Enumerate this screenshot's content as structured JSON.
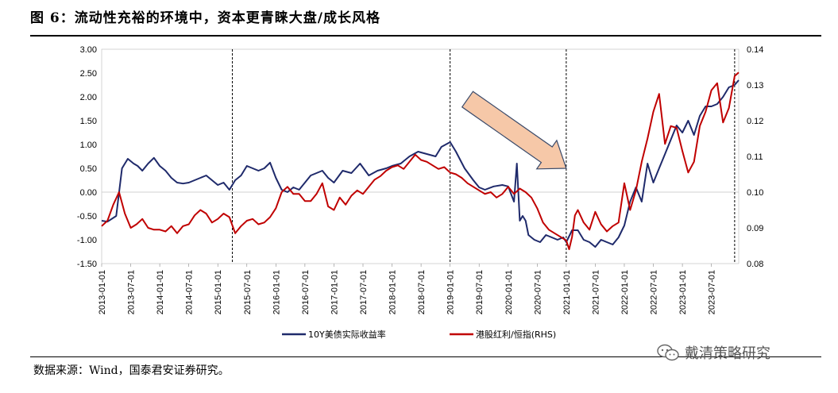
{
  "figure": {
    "title": "图 6：流动性充裕的环境中，资本更青睐大盘/成长风格",
    "source": "数据来源：Wind，国泰君安证券研究。",
    "watermark": "戴清策略研究",
    "watermark_icon": "wechat-icon"
  },
  "colors": {
    "series1": "#1f2a6b",
    "series2": "#c00000",
    "arrow_fill": "#f6c8a8",
    "arrow_stroke": "#3a4a6a"
  },
  "chart_data": {
    "type": "line",
    "title": "",
    "x_tick_labels": [
      "2013-01-01",
      "2013-07-01",
      "2014-01-01",
      "2014-07-01",
      "2015-01-01",
      "2015-07-01",
      "2016-01-01",
      "2016-07-01",
      "2017-01-01",
      "2017-07-01",
      "2018-01-01",
      "2018-07-01",
      "2019-01-01",
      "2019-07-01",
      "2020-01-01",
      "2020-07-01",
      "2021-01-01",
      "2021-07-01",
      "2022-01-01",
      "2022-07-01",
      "2023-01-01",
      "2023-07-01"
    ],
    "x_range": [
      2013.0,
      2023.97
    ],
    "y_left": {
      "range": [
        -1.5,
        3.0
      ],
      "ticks": [
        "-1.50",
        "-1.00",
        "-0.50",
        "0.00",
        "0.50",
        "1.00",
        "1.50",
        "2.00",
        "2.50",
        "3.00"
      ]
    },
    "y_right": {
      "range": [
        0.08,
        0.14
      ],
      "ticks": [
        "0.08",
        "0.09",
        "0.10",
        "0.11",
        "0.12",
        "0.13",
        "0.14"
      ]
    },
    "vertical_dashed_lines": [
      2015.25,
      2019.0,
      2021.0,
      2023.9
    ],
    "annotation_arrow": {
      "from": [
        2019.3,
        1.95
      ],
      "to": [
        2021.0,
        0.5
      ]
    },
    "series": [
      {
        "name": "10Y美债实际收益率",
        "axis": "left",
        "x": [
          2013.0,
          2013.1,
          2013.25,
          2013.35,
          2013.45,
          2013.55,
          2013.62,
          2013.7,
          2013.8,
          2013.9,
          2014.0,
          2014.1,
          2014.2,
          2014.3,
          2014.4,
          2014.5,
          2014.6,
          2014.7,
          2014.8,
          2014.9,
          2015.0,
          2015.1,
          2015.2,
          2015.3,
          2015.4,
          2015.5,
          2015.6,
          2015.7,
          2015.8,
          2015.9,
          2016.0,
          2016.1,
          2016.2,
          2016.3,
          2016.4,
          2016.5,
          2016.6,
          2016.7,
          2016.8,
          2016.9,
          2017.0,
          2017.15,
          2017.3,
          2017.45,
          2017.6,
          2017.75,
          2017.9,
          2018.0,
          2018.15,
          2018.3,
          2018.45,
          2018.6,
          2018.75,
          2018.85,
          2019.0,
          2019.1,
          2019.25,
          2019.4,
          2019.5,
          2019.6,
          2019.75,
          2019.9,
          2020.0,
          2020.1,
          2020.15,
          2020.2,
          2020.25,
          2020.3,
          2020.35,
          2020.45,
          2020.55,
          2020.65,
          2020.75,
          2020.85,
          2020.95,
          2021.0,
          2021.1,
          2021.2,
          2021.3,
          2021.4,
          2021.5,
          2021.6,
          2021.7,
          2021.8,
          2021.9,
          2022.0,
          2022.1,
          2022.2,
          2022.3,
          2022.4,
          2022.5,
          2022.6,
          2022.7,
          2022.8,
          2022.9,
          2023.0,
          2023.1,
          2023.2,
          2023.3,
          2023.4,
          2023.5,
          2023.6,
          2023.7,
          2023.8,
          2023.9,
          2023.97
        ],
        "y": [
          -0.6,
          -0.62,
          -0.5,
          0.5,
          0.7,
          0.6,
          0.55,
          0.45,
          0.6,
          0.72,
          0.55,
          0.45,
          0.3,
          0.2,
          0.18,
          0.2,
          0.25,
          0.3,
          0.35,
          0.25,
          0.15,
          0.2,
          0.05,
          0.25,
          0.35,
          0.55,
          0.5,
          0.45,
          0.5,
          0.62,
          0.3,
          0.05,
          0.0,
          0.1,
          0.05,
          0.2,
          0.35,
          0.4,
          0.45,
          0.3,
          0.2,
          0.45,
          0.4,
          0.6,
          0.35,
          0.45,
          0.5,
          0.55,
          0.6,
          0.75,
          0.85,
          0.8,
          0.75,
          0.95,
          1.05,
          0.85,
          0.5,
          0.25,
          0.1,
          0.05,
          0.12,
          0.15,
          0.12,
          -0.2,
          0.6,
          -0.6,
          -0.5,
          -0.6,
          -0.9,
          -1.0,
          -1.05,
          -0.9,
          -0.95,
          -1.0,
          -0.95,
          -1.05,
          -0.8,
          -0.8,
          -1.0,
          -1.05,
          -1.15,
          -1.0,
          -1.05,
          -1.1,
          -0.95,
          -0.7,
          -0.2,
          0.1,
          -0.2,
          0.6,
          0.2,
          0.5,
          0.8,
          1.1,
          1.4,
          1.25,
          1.5,
          1.2,
          1.6,
          1.8,
          1.8,
          1.85,
          2.0,
          2.2,
          2.25,
          2.35
        ]
      },
      {
        "name": "港股红利/恒指(RHS)",
        "axis": "right",
        "x": [
          2013.0,
          2013.1,
          2013.2,
          2013.3,
          2013.4,
          2013.5,
          2013.6,
          2013.7,
          2013.8,
          2013.9,
          2014.0,
          2014.1,
          2014.2,
          2014.3,
          2014.4,
          2014.5,
          2014.6,
          2014.7,
          2014.8,
          2014.9,
          2015.0,
          2015.1,
          2015.2,
          2015.3,
          2015.4,
          2015.5,
          2015.6,
          2015.7,
          2015.8,
          2015.9,
          2016.0,
          2016.1,
          2016.2,
          2016.3,
          2016.4,
          2016.5,
          2016.6,
          2016.7,
          2016.8,
          2016.9,
          2017.0,
          2017.1,
          2017.2,
          2017.3,
          2017.4,
          2017.5,
          2017.6,
          2017.7,
          2017.8,
          2017.9,
          2018.0,
          2018.1,
          2018.2,
          2018.3,
          2018.4,
          2018.5,
          2018.6,
          2018.7,
          2018.8,
          2018.9,
          2019.0,
          2019.1,
          2019.2,
          2019.3,
          2019.4,
          2019.5,
          2019.6,
          2019.7,
          2019.8,
          2019.9,
          2020.0,
          2020.1,
          2020.2,
          2020.3,
          2020.4,
          2020.5,
          2020.6,
          2020.7,
          2020.8,
          2020.9,
          2021.0,
          2021.05,
          2021.1,
          2021.15,
          2021.2,
          2021.3,
          2021.4,
          2021.5,
          2021.6,
          2021.7,
          2021.8,
          2021.9,
          2022.0,
          2022.1,
          2022.2,
          2022.3,
          2022.4,
          2022.5,
          2022.6,
          2022.7,
          2022.8,
          2022.9,
          2023.0,
          2023.1,
          2023.2,
          2023.3,
          2023.4,
          2023.5,
          2023.6,
          2023.7,
          2023.8,
          2023.9,
          2023.97
        ],
        "y": [
          0.0905,
          0.092,
          0.0965,
          0.1,
          0.094,
          0.09,
          0.091,
          0.0925,
          0.09,
          0.0895,
          0.0895,
          0.089,
          0.0905,
          0.0885,
          0.0905,
          0.091,
          0.0935,
          0.095,
          0.094,
          0.0915,
          0.0925,
          0.094,
          0.093,
          0.0885,
          0.0905,
          0.092,
          0.0925,
          0.091,
          0.0915,
          0.093,
          0.0955,
          0.1,
          0.1015,
          0.0995,
          0.0995,
          0.0975,
          0.0975,
          0.0995,
          0.1025,
          0.096,
          0.095,
          0.0985,
          0.0965,
          0.099,
          0.1005,
          0.0995,
          0.1015,
          0.1035,
          0.1045,
          0.106,
          0.107,
          0.1075,
          0.1065,
          0.1085,
          0.1105,
          0.109,
          0.1085,
          0.1075,
          0.1065,
          0.107,
          0.1055,
          0.105,
          0.104,
          0.1025,
          0.1015,
          0.1005,
          0.0995,
          0.1,
          0.0985,
          0.0995,
          0.1015,
          0.0995,
          0.101,
          0.1,
          0.0985,
          0.0955,
          0.0915,
          0.0895,
          0.0885,
          0.0875,
          0.0865,
          0.084,
          0.0875,
          0.0935,
          0.095,
          0.0915,
          0.0895,
          0.0945,
          0.091,
          0.089,
          0.0905,
          0.0915,
          0.1025,
          0.095,
          0.1005,
          0.1085,
          0.115,
          0.1225,
          0.1275,
          0.1135,
          0.1185,
          0.118,
          0.1115,
          0.1055,
          0.1085,
          0.1185,
          0.1225,
          0.1285,
          0.1305,
          0.1195,
          0.1235,
          0.1325,
          0.1335
        ]
      }
    ]
  }
}
